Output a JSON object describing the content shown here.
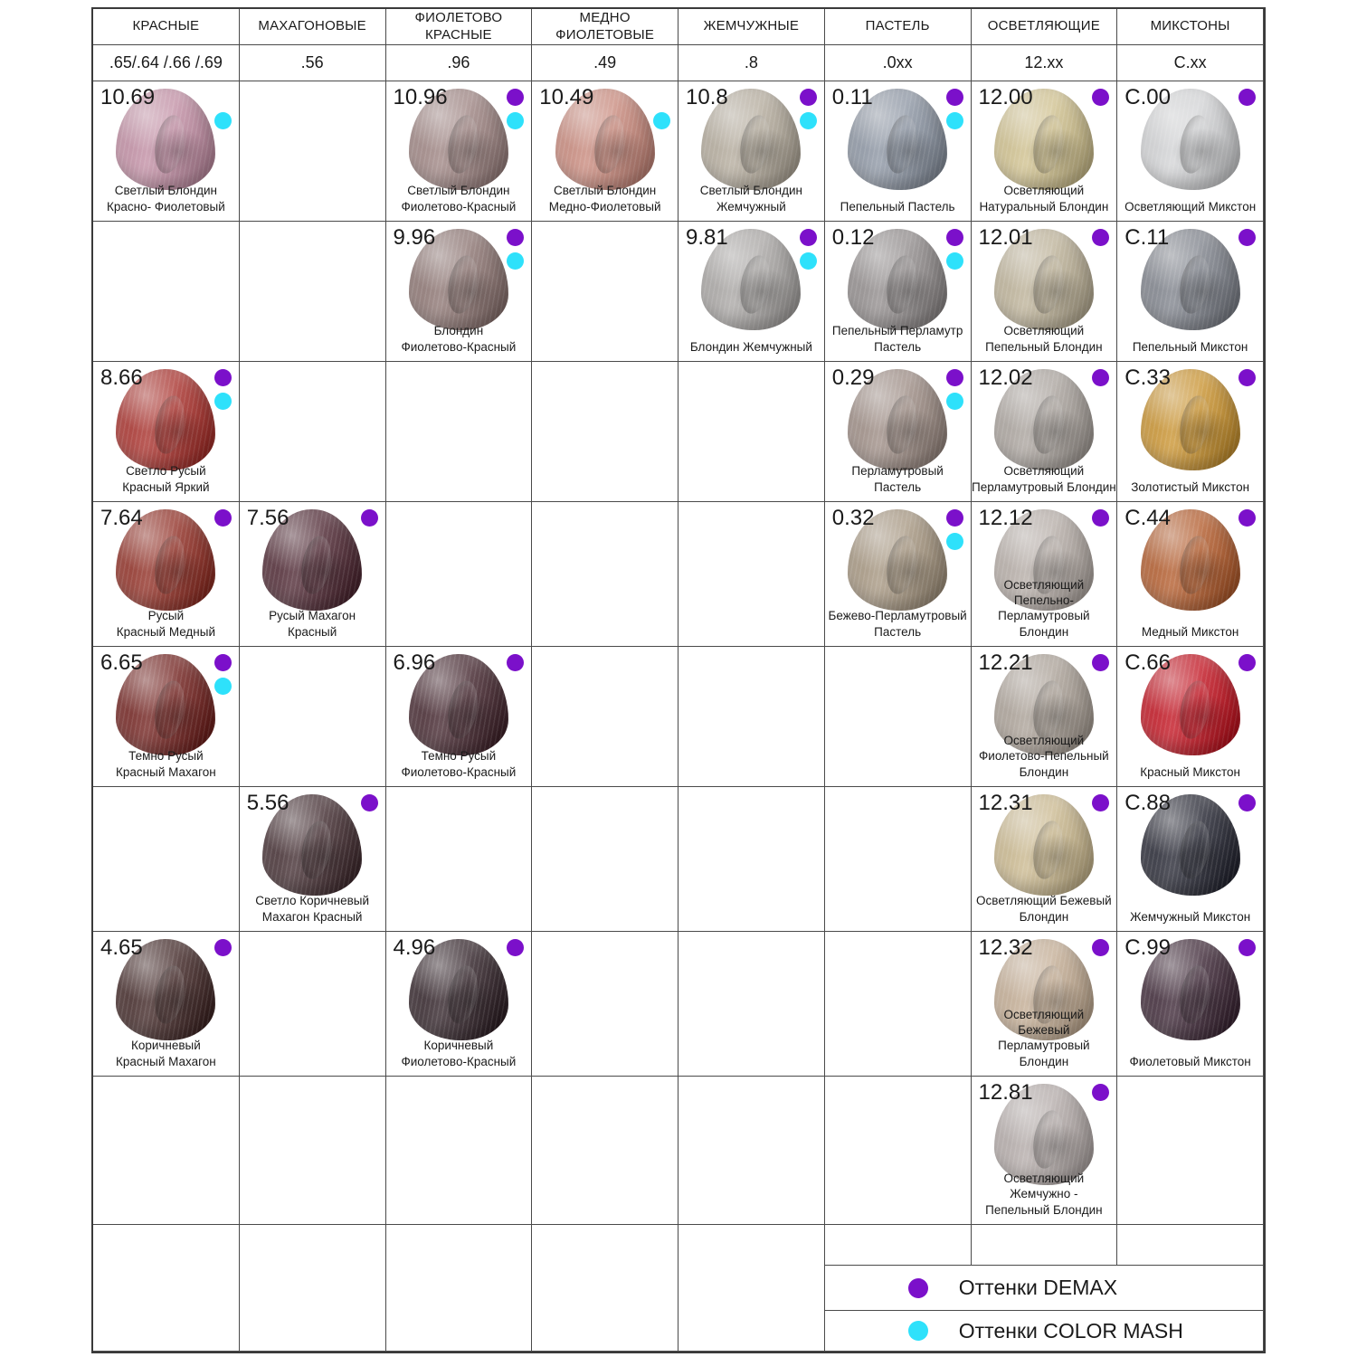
{
  "legend": {
    "demax": {
      "label": "Оттенки DEMAX",
      "color": "#7b10ca"
    },
    "colormash": {
      "label": "Оттенки COLOR MASH",
      "color": "#2ee1fb"
    }
  },
  "columns": [
    {
      "title": "КРАСНЫЕ",
      "code": ".65/.64 /.66 /.69"
    },
    {
      "title": "МАХАГОНОВЫЕ",
      "code": ".56"
    },
    {
      "title": "ФИОЛЕТОВО\nКРАСНЫЕ",
      "code": ".96"
    },
    {
      "title": "МЕДНО\nФИОЛЕТОВЫЕ",
      "code": ".49"
    },
    {
      "title": "ЖЕМЧУЖНЫЕ",
      "code": ".8"
    },
    {
      "title": "ПАСТЕЛЬ",
      "code": ".0xx"
    },
    {
      "title": "ОСВЕТЛЯЮЩИЕ",
      "code": "12.xx"
    },
    {
      "title": "МИКСТОНЫ",
      "code": "C.xx"
    }
  ],
  "rows": [
    [
      {
        "code": "10.69",
        "name": "Светлый Блондин\nКрасно- Фиолетовый",
        "color": "#c18da3",
        "dots": [
          "colormash"
        ]
      },
      null,
      {
        "code": "10.96",
        "name": "Светлый Блондин\nФиолетово-Красный",
        "color": "#9d8381",
        "dots": [
          "demax",
          "colormash"
        ]
      },
      {
        "code": "10.49",
        "name": "Светлый Блондин\nМедно-Фиолетовый",
        "color": "#c8887b",
        "dots": [
          "colormash"
        ]
      },
      {
        "code": "10.8",
        "name": "Светлый Блондин\nЖемчужный",
        "color": "#b3aa9b",
        "dots": [
          "demax",
          "colormash"
        ]
      },
      {
        "code": "0.11",
        "name": "Пепельный Пастель",
        "color": "#8b94a2",
        "dots": [
          "demax",
          "colormash"
        ]
      },
      {
        "code": "12.00",
        "name": "Осветляющий\nНатуральный Блондин",
        "color": "#cfc08d",
        "dots": [
          "demax"
        ]
      },
      {
        "code": "C.00",
        "name": "Осветляющий Микстон",
        "color": "#d2d3d5",
        "dots": [
          "demax"
        ]
      }
    ],
    [
      null,
      null,
      {
        "code": "9.96",
        "name": "Блондин\nФиолетово-Красный",
        "color": "#8b7370",
        "dots": [
          "demax",
          "colormash"
        ]
      },
      null,
      {
        "code": "9.81",
        "name": "Блондин Жемчужный",
        "color": "#a8a5a3",
        "dots": [
          "demax",
          "colormash"
        ]
      },
      {
        "code": "0.12",
        "name": "Пепельный Перламутр\nПастель",
        "color": "#908b8b",
        "dots": [
          "demax",
          "colormash"
        ]
      },
      {
        "code": "12.01",
        "name": "Осветляющий\nПепельный Блондин",
        "color": "#bcb197",
        "dots": [
          "demax"
        ]
      },
      {
        "code": "C.11",
        "name": "Пепельный Микстон",
        "color": "#7d818a",
        "dots": [
          "demax"
        ]
      }
    ],
    [
      {
        "code": "8.66",
        "name": "Светло Русый\nКрасный Яркий",
        "color": "#a72e29",
        "dots": [
          "demax",
          "colormash"
        ]
      },
      null,
      null,
      null,
      null,
      {
        "code": "0.29",
        "name": "Перламутровый\nПастель",
        "color": "#9c8b83",
        "dots": [
          "demax",
          "colormash"
        ]
      },
      {
        "code": "12.02",
        "name": "Осветляющий\nПерламутровый Блондин",
        "color": "#a9a29c",
        "dots": [
          "demax"
        ]
      },
      {
        "code": "C.33",
        "name": "Золотистый Микстон",
        "color": "#c9922e",
        "dots": [
          "demax"
        ]
      }
    ],
    [
      {
        "code": "7.64",
        "name": "Русый\nКрасный Медный",
        "color": "#8f2c22",
        "dots": [
          "demax"
        ]
      },
      {
        "code": "7.56",
        "name": "Русый Махагон\nКрасный",
        "color": "#4c2530",
        "dots": [
          "demax"
        ]
      },
      null,
      null,
      null,
      {
        "code": "0.32",
        "name": "Бежево-Перламутровый\nПастель",
        "color": "#a5957f",
        "dots": [
          "demax",
          "colormash"
        ]
      },
      {
        "code": "12.12",
        "name": "Осветляющий\nПепельно-Перламутровый\nБлондин",
        "color": "#b5aca6",
        "dots": [
          "demax"
        ]
      },
      {
        "code": "C.44",
        "name": "Медный Микстон",
        "color": "#b25a2a",
        "dots": [
          "demax"
        ]
      }
    ],
    [
      {
        "code": "6.65",
        "name": "Темно Русый\nКрасный Махагон",
        "color": "#701f1c",
        "dots": [
          "demax",
          "colormash"
        ]
      },
      null,
      {
        "code": "6.96",
        "name": "Темно Русый\nФиолетово-Красный",
        "color": "#41232b",
        "dots": [
          "demax"
        ]
      },
      null,
      null,
      null,
      {
        "code": "12.21",
        "name": "Осветляющий\nФиолетово-Пепельный\nБлондин",
        "color": "#aaa096",
        "dots": [
          "demax"
        ]
      },
      {
        "code": "C.66",
        "name": "Красный Микстон",
        "color": "#c1111e",
        "dots": [
          "demax"
        ]
      }
    ],
    [
      null,
      {
        "code": "5.56",
        "name": "Светло Коричневый\nМахагон Красный",
        "color": "#402a2e",
        "dots": [
          "demax"
        ]
      },
      null,
      null,
      null,
      null,
      {
        "code": "12.31",
        "name": "Осветляющий Бежевый\nБлондин",
        "color": "#cab88e",
        "dots": [
          "demax"
        ]
      },
      {
        "code": "C.88",
        "name": "Жемчужный Микстон",
        "color": "#232430",
        "dots": [
          "demax"
        ]
      }
    ],
    [
      {
        "code": "4.65",
        "name": "Коричневый\nКрасный Махагон",
        "color": "#3e2423",
        "dots": [
          "demax"
        ]
      },
      null,
      {
        "code": "4.96",
        "name": "Коричневый\nФиолетово-Красный",
        "color": "#2e1f25",
        "dots": [
          "demax"
        ]
      },
      null,
      null,
      null,
      {
        "code": "12.32",
        "name": "Осветляющий\nБежевый Перламутровый\nБлондин",
        "color": "#c3ac93",
        "dots": [
          "demax"
        ]
      },
      {
        "code": "C.99",
        "name": "Фиолетовый Микстон",
        "color": "#3a2433",
        "dots": [
          "demax"
        ]
      }
    ],
    [
      null,
      null,
      null,
      null,
      null,
      null,
      {
        "code": "12.81",
        "name": "Осветляющий\nЖемчужно -\nПепельный Блондин",
        "color": "#b3aaa8",
        "dots": [
          "demax"
        ]
      },
      null
    ]
  ]
}
